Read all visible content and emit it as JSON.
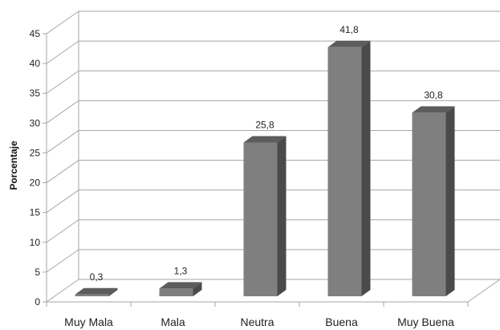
{
  "chart_data": {
    "type": "bar",
    "title": "",
    "xlabel": "",
    "ylabel": "Porcentaje",
    "ylim": [
      0,
      45
    ],
    "ytick_step": 5,
    "yticks": [
      "0",
      "5",
      "10",
      "15",
      "20",
      "25",
      "30",
      "35",
      "40",
      "45"
    ],
    "categories": [
      "Muy Mala",
      "Mala",
      "Neutra",
      "Buena",
      "Muy Buena"
    ],
    "values": [
      0.3,
      1.3,
      25.8,
      41.8,
      30.8
    ],
    "data_labels": [
      "0,3",
      "1,3",
      "25,8",
      "41,8",
      "30,8"
    ],
    "grid": true,
    "legend": "none",
    "colors": {
      "bar_front": "#7f7f7f",
      "bar_side": "#4a4a4a",
      "bar_top": "#5c5c5c",
      "grid": "#a6a6a6",
      "axis": "#a6a6a6"
    }
  }
}
